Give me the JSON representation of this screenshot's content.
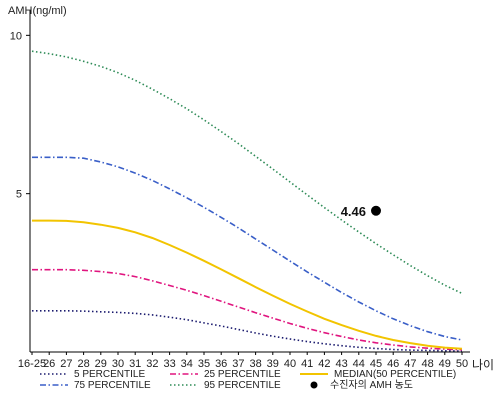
{
  "chart_data": {
    "type": "line",
    "ylabel": "AMH(ng/ml)",
    "xlabel": "나이",
    "categories": [
      "16-25",
      "26",
      "27",
      "28",
      "29",
      "30",
      "31",
      "32",
      "33",
      "34",
      "35",
      "36",
      "37",
      "38",
      "39",
      "40",
      "41",
      "42",
      "43",
      "44",
      "45",
      "46",
      "47",
      "48",
      "49",
      "50"
    ],
    "yticks": [
      5,
      10
    ],
    "ylim": [
      0,
      10.8
    ],
    "grid": false,
    "legend_position": "bottom",
    "series": [
      {
        "name": "5 PERCENTILE",
        "color": "#1a1a6e",
        "dash": "dot",
        "values": [
          1.3,
          1.3,
          1.3,
          1.29,
          1.27,
          1.25,
          1.22,
          1.17,
          1.1,
          1.02,
          0.92,
          0.82,
          0.71,
          0.6,
          0.5,
          0.41,
          0.33,
          0.26,
          0.2,
          0.15,
          0.11,
          0.08,
          0.06,
          0.05,
          0.04,
          0.03
        ]
      },
      {
        "name": "75 PERCENTILE",
        "color": "#3a5fc8",
        "dash": "dashdot",
        "values": [
          6.15,
          6.15,
          6.15,
          6.12,
          6.0,
          5.85,
          5.65,
          5.42,
          5.15,
          4.87,
          4.57,
          4.25,
          3.92,
          3.57,
          3.22,
          2.87,
          2.53,
          2.2,
          1.88,
          1.58,
          1.3,
          1.05,
          0.83,
          0.64,
          0.49,
          0.38
        ]
      },
      {
        "name": "25 PERCENTILE",
        "color": "#e0157f",
        "dash": "dashdot",
        "values": [
          2.6,
          2.6,
          2.6,
          2.58,
          2.54,
          2.48,
          2.38,
          2.25,
          2.1,
          1.95,
          1.78,
          1.6,
          1.42,
          1.24,
          1.07,
          0.9,
          0.75,
          0.61,
          0.49,
          0.38,
          0.29,
          0.22,
          0.16,
          0.12,
          0.09,
          0.07
        ]
      },
      {
        "name": "95 PERCENTILE",
        "color": "#2e8b57",
        "dash": "dot",
        "values": [
          9.5,
          9.42,
          9.32,
          9.18,
          9.02,
          8.82,
          8.58,
          8.3,
          8.0,
          7.68,
          7.33,
          6.96,
          6.58,
          6.18,
          5.78,
          5.37,
          4.96,
          4.56,
          4.17,
          3.79,
          3.42,
          3.07,
          2.73,
          2.41,
          2.11,
          1.85
        ]
      },
      {
        "name": "MEDIAN(50 PERCENTILE)",
        "color": "#f2c400",
        "dash": "solid",
        "values": [
          4.15,
          4.15,
          4.14,
          4.1,
          4.02,
          3.92,
          3.78,
          3.6,
          3.38,
          3.14,
          2.88,
          2.61,
          2.33,
          2.05,
          1.78,
          1.52,
          1.28,
          1.05,
          0.85,
          0.67,
          0.51,
          0.38,
          0.28,
          0.2,
          0.14,
          0.1
        ]
      }
    ],
    "points": [
      {
        "name": "수진자의 AMH 농도",
        "x": "45",
        "y": 4.46,
        "label": "4.46",
        "color": "#000000"
      }
    ]
  }
}
